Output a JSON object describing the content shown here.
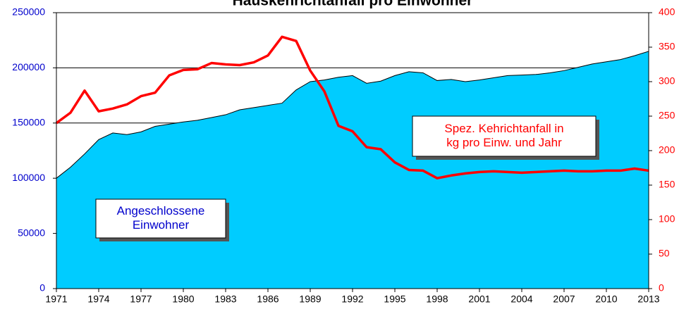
{
  "chart_data": {
    "type": "area_line",
    "title": "Hauskehrichtanfall pro Einwohner",
    "x": [
      1971,
      1972,
      1973,
      1974,
      1975,
      1976,
      1977,
      1978,
      1979,
      1980,
      1981,
      1982,
      1983,
      1984,
      1985,
      1986,
      1987,
      1988,
      1989,
      1990,
      1991,
      1992,
      1993,
      1994,
      1995,
      1996,
      1997,
      1998,
      1999,
      2000,
      2001,
      2002,
      2003,
      2004,
      2005,
      2006,
      2007,
      2008,
      2009,
      2010,
      2011,
      2012,
      2013
    ],
    "xlim": [
      1971,
      2013
    ],
    "xticks": [
      1971,
      1974,
      1977,
      1980,
      1983,
      1986,
      1989,
      1992,
      1995,
      1998,
      2001,
      2004,
      2007,
      2010,
      2013
    ],
    "ylim": [
      0,
      250000
    ],
    "yticks": [
      0,
      50000,
      100000,
      150000,
      200000,
      250000
    ],
    "y2lim": [
      0,
      400
    ],
    "y2ticks": [
      0,
      50,
      100,
      150,
      200,
      250,
      300,
      350,
      400
    ],
    "grid": true,
    "series": [
      {
        "name": "Angeschlossene Einwohner",
        "type": "area",
        "color": "#00ccff",
        "axis": "y",
        "values": [
          100000,
          110000,
          122000,
          135000,
          141000,
          139500,
          142000,
          147000,
          149000,
          151000,
          152500,
          155000,
          157500,
          162000,
          164000,
          166000,
          168000,
          180000,
          187500,
          189000,
          191500,
          193000,
          186000,
          188000,
          193000,
          196500,
          195500,
          188500,
          189500,
          187500,
          189000,
          191000,
          193000,
          193500,
          194000,
          195500,
          197500,
          200500,
          203500,
          205500,
          207500,
          211000,
          215000
        ]
      },
      {
        "name": "Spez. Kehrichtanfall in kg pro Einw. und Jahr",
        "type": "line",
        "color": "#ff0000",
        "axis": "y2",
        "values": [
          240,
          255,
          287,
          257,
          261,
          267,
          279,
          284,
          309,
          317,
          318,
          327,
          325,
          324,
          328,
          338,
          365,
          359,
          316,
          286,
          236,
          228,
          205,
          202,
          183,
          172,
          171,
          160,
          164,
          167,
          169,
          170,
          169,
          168,
          169,
          170,
          171,
          170,
          170,
          171,
          171,
          174,
          171
        ]
      }
    ],
    "annotations": [
      {
        "lines": [
          "Angeschlossene",
          "Einwohner"
        ],
        "color": "#0000cc"
      },
      {
        "lines": [
          "Spez. Kehrichtanfall in",
          "kg pro Einw. und Jahr"
        ],
        "color": "#ff0000"
      }
    ]
  }
}
